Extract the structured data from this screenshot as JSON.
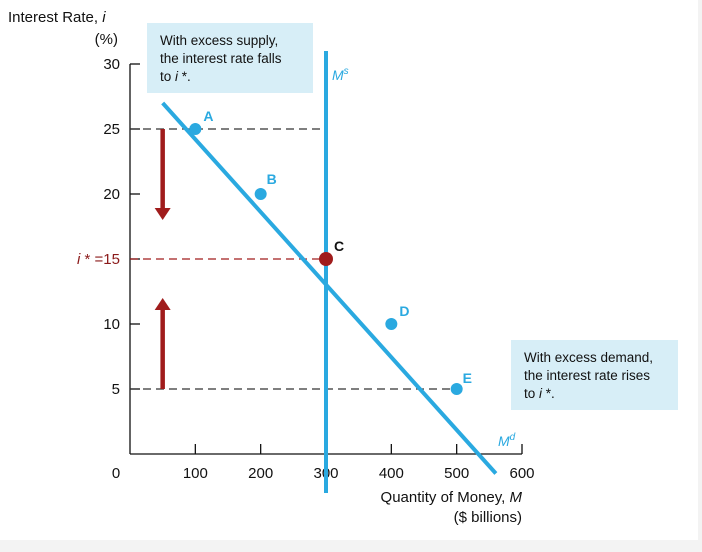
{
  "chart_data": {
    "type": "line",
    "ylabel_line1": "Interest Rate, i",
    "ylabel_line2": "(%)",
    "xlabel_line1": "Quantity of Money, M",
    "xlabel_line2": "($ billions)",
    "xlim": [
      0,
      600
    ],
    "ylim": [
      0,
      30
    ],
    "x_ticks": [
      "0",
      "100",
      "200",
      "300",
      "400",
      "500",
      "600"
    ],
    "y_ticks": [
      {
        "value": 30,
        "label": "30"
      },
      {
        "value": 25,
        "label": "25"
      },
      {
        "value": 20,
        "label": "20"
      },
      {
        "value": 15,
        "label": "i * =15"
      },
      {
        "value": 10,
        "label": "10"
      },
      {
        "value": 5,
        "label": "5"
      }
    ],
    "series": [
      {
        "name": "Md",
        "label_text": "M",
        "label_sup": "d",
        "color": "#2aa9e0",
        "x": [
          50,
          560
        ],
        "y": [
          27,
          -1.5
        ]
      },
      {
        "name": "Ms",
        "label_text": "M",
        "label_sup": "s",
        "color": "#2aa9e0",
        "x": [
          300,
          300
        ],
        "y": [
          31,
          -3
        ]
      }
    ],
    "points": [
      {
        "label": "A",
        "x": 100,
        "y": 25,
        "color": "#2aa9e0"
      },
      {
        "label": "B",
        "x": 200,
        "y": 20,
        "color": "#2aa9e0"
      },
      {
        "label": "C",
        "x": 300,
        "y": 15,
        "color": "#a01c1c"
      },
      {
        "label": "D",
        "x": 400,
        "y": 10,
        "color": "#2aa9e0"
      },
      {
        "label": "E",
        "x": 500,
        "y": 5,
        "color": "#2aa9e0"
      }
    ],
    "reference_lines": [
      {
        "y": 25,
        "x_to": 300,
        "color": "#333333"
      },
      {
        "y": 15,
        "x_to": 300,
        "color": "#a01c1c"
      },
      {
        "y": 5,
        "x_to": 500,
        "color": "#333333"
      }
    ],
    "arrows": [
      {
        "direction": "down",
        "x": 50,
        "y_from": 25,
        "y_to": 18,
        "color": "#a01c1c"
      },
      {
        "direction": "up",
        "x": 50,
        "y_from": 5,
        "y_to": 12,
        "color": "#a01c1c"
      }
    ],
    "annotations": [
      {
        "lines": [
          "With excess supply,",
          "the interest rate falls",
          "to i *."
        ]
      },
      {
        "lines": [
          "With excess demand,",
          "the interest rate rises",
          "to i *."
        ]
      }
    ],
    "grid": false,
    "colors": {
      "curve": "#2aa9e0",
      "equilibrium": "#a01c1c",
      "note_bg": "#d7eef7"
    }
  }
}
